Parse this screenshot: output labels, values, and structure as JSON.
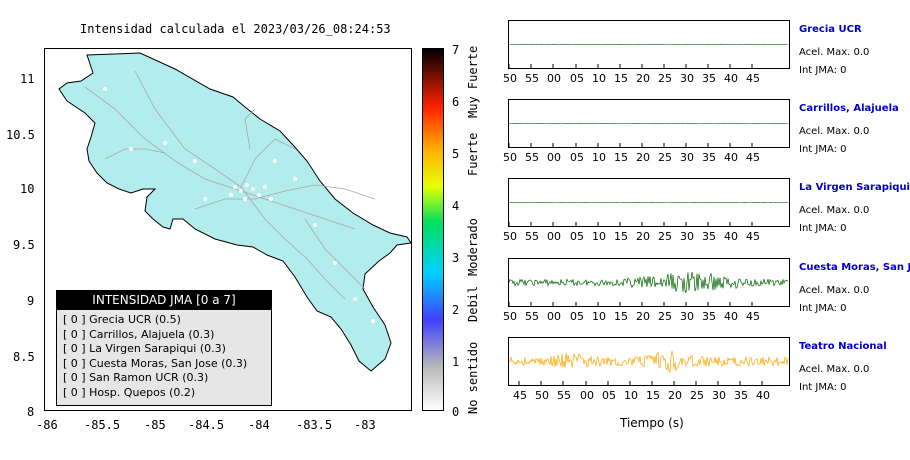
{
  "map": {
    "title": "Intensidad calculada el 2023/03/26_08:24:53",
    "y_ticks": [
      "11",
      "10.5",
      "10",
      "9.5",
      "9",
      "8.5",
      "8"
    ],
    "x_ticks": [
      "-86",
      "-85.5",
      "-85",
      "-84.5",
      "-84",
      "-83.5",
      "-83"
    ],
    "land_color": "#b3ecec"
  },
  "colorbar": {
    "numbers": [
      "7",
      "6",
      "5",
      "4",
      "3",
      "2",
      "1",
      "0"
    ],
    "words": [
      "Muy Fuerte",
      "Fuerte",
      "Moderado",
      "Debil",
      "No sentido"
    ]
  },
  "legend": {
    "title": "INTENSIDAD JMA [0 a 7]",
    "rows": [
      "[ 0 ] Grecia UCR (0.5)",
      "[ 0 ] Carrillos, Alajuela (0.3)",
      "[ 0 ] La Virgen Sarapiqui (0.3)",
      "[ 0 ] Cuesta Moras, San Jose (0.3)",
      "[ 0 ] San Ramon UCR (0.3)",
      "[ 0 ] Hosp. Quepos (0.2)"
    ]
  },
  "panels": [
    {
      "station": "Grecia UCR",
      "acel": "Acel. Max. 0.0",
      "int": "Int JMA: 0",
      "ticks": [
        "50",
        "55",
        "00",
        "05",
        "10",
        "15",
        "20",
        "25",
        "30",
        "35",
        "40",
        "45"
      ],
      "color": "#006400",
      "amp": 0
    },
    {
      "station": "Carrillos, Alajuela",
      "acel": "Acel. Max. 0.0",
      "int": "Int JMA: 0",
      "ticks": [
        "50",
        "55",
        "00",
        "05",
        "10",
        "15",
        "20",
        "25",
        "30",
        "35",
        "40",
        "45"
      ],
      "color": "#006400",
      "amp": 0
    },
    {
      "station": "La Virgen Sarapiqui",
      "acel": "Acel. Max. 0.0",
      "int": "Int JMA: 0",
      "ticks": [
        "50",
        "55",
        "00",
        "05",
        "10",
        "15",
        "20",
        "25",
        "30",
        "35",
        "40",
        "45"
      ],
      "color": "#006400",
      "amp": 0
    },
    {
      "station": "Cuesta Moras, San Jose",
      "acel": "Acel. Max. 0.0",
      "int": "Int JMA: 0",
      "ticks": [
        "50",
        "55",
        "00",
        "05",
        "10",
        "15",
        "20",
        "25",
        "30",
        "35",
        "40",
        "45"
      ],
      "color": "#006400",
      "amp": 1
    },
    {
      "station": "Teatro Nacional",
      "acel": "Acel. Max. 0.0",
      "int": "Int JMA: 0",
      "ticks": [
        "45",
        "50",
        "55",
        "00",
        "05",
        "10",
        "15",
        "20",
        "25",
        "30",
        "35",
        "40"
      ],
      "color": "#ffa500",
      "amp": 1
    }
  ],
  "xaxis_title": "Tiempo (s)"
}
